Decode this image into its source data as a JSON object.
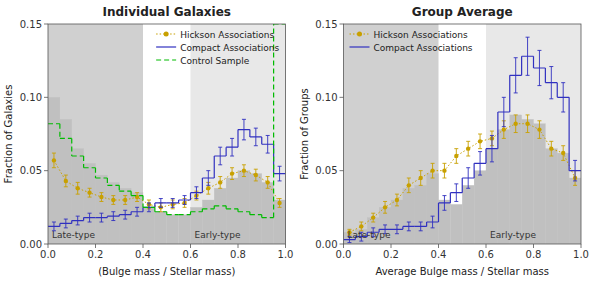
{
  "chart_data": [
    {
      "type": "histogram",
      "title": "Individual Galaxies",
      "x_label": "(Bulge mass / Stellar mass)",
      "y_label": "Fraction of Galaxies",
      "xlim": [
        0,
        1.0
      ],
      "ylim": [
        0,
        0.15
      ],
      "xticks": [
        {
          "value": 0,
          "label": "0.0"
        },
        0.2,
        0.4,
        0.6,
        0.8,
        {
          "value": 1.0,
          "label": "1.0"
        }
      ],
      "yticks": [
        {
          "value": 0,
          "label": "0.00"
        },
        0.05,
        {
          "value": 0.1,
          "label": "0.10"
        },
        0.15
      ],
      "grid": false,
      "legend": "upper right",
      "regions": [
        {
          "label": "Late-type",
          "from": 0,
          "to": 0.4,
          "color": "#d0d0d0"
        },
        {
          "label": "Early-type",
          "from": 0.6,
          "to": 1.0,
          "color": "#e8e8e8"
        }
      ],
      "bins": [
        0.0,
        0.05,
        0.1,
        0.15,
        0.2,
        0.25,
        0.3,
        0.35,
        0.4,
        0.45,
        0.5,
        0.55,
        0.6,
        0.65,
        0.7,
        0.75,
        0.8,
        0.85,
        0.9,
        0.95,
        1.0
      ],
      "x": [
        0.025,
        0.075,
        0.125,
        0.175,
        0.225,
        0.275,
        0.325,
        0.375,
        0.425,
        0.475,
        0.525,
        0.575,
        0.625,
        0.675,
        0.725,
        0.775,
        0.825,
        0.875,
        0.925,
        0.975
      ],
      "series": [
        {
          "type": "bar",
          "color": "#c0c0c0",
          "values": [
            0.1,
            0.085,
            0.065,
            0.055,
            0.047,
            0.042,
            0.038,
            0.035,
            0.025,
            0.022,
            0.02,
            0.02,
            0.025,
            0.03,
            0.038,
            0.045,
            0.05,
            0.048,
            0.042,
            0.03
          ]
        },
        {
          "name": "Hickson Associations",
          "type": "errorbar",
          "color": "#c8a000",
          "marker": "circle",
          "line_style": "dotted",
          "values": [
            0.057,
            0.043,
            0.038,
            0.035,
            0.032,
            0.03,
            0.03,
            0.032,
            0.027,
            0.025,
            0.027,
            0.028,
            0.033,
            0.038,
            0.042,
            0.048,
            0.05,
            0.047,
            0.042,
            0.028
          ],
          "errors": [
            0.005,
            0.004,
            0.004,
            0.003,
            0.003,
            0.003,
            0.003,
            0.003,
            0.003,
            0.003,
            0.003,
            0.003,
            0.003,
            0.004,
            0.004,
            0.004,
            0.004,
            0.004,
            0.004,
            0.003
          ]
        },
        {
          "name": "Compact Associations",
          "type": "step",
          "color": "#3030c0",
          "line_style": "solid",
          "values": [
            0.012,
            0.014,
            0.016,
            0.018,
            0.018,
            0.019,
            0.02,
            0.022,
            0.025,
            0.028,
            0.028,
            0.03,
            0.035,
            0.045,
            0.06,
            0.066,
            0.078,
            0.073,
            0.068,
            0.048
          ],
          "errors": [
            0.003,
            0.003,
            0.003,
            0.003,
            0.003,
            0.003,
            0.003,
            0.003,
            0.003,
            0.003,
            0.003,
            0.003,
            0.004,
            0.005,
            0.006,
            0.006,
            0.007,
            0.006,
            0.006,
            0.005
          ]
        },
        {
          "name": "Control Sample",
          "type": "step",
          "color": "#00bb00",
          "line_style": "dashed",
          "values": [
            0.082,
            0.072,
            0.06,
            0.052,
            0.045,
            0.04,
            0.036,
            0.033,
            0.025,
            0.022,
            0.02,
            0.02,
            0.022,
            0.024,
            0.026,
            0.024,
            0.022,
            0.02,
            0.018,
            0.15
          ]
        }
      ]
    },
    {
      "type": "histogram",
      "title": "Group Average",
      "x_label": "Average Bulge mass / Stellar mass",
      "y_label": "Fraction of Groups",
      "xlim": [
        0,
        1.0
      ],
      "ylim": [
        0,
        0.15
      ],
      "xticks": [
        {
          "value": 0,
          "label": "0.0"
        },
        0.2,
        0.4,
        0.6,
        0.8,
        {
          "value": 1.0,
          "label": "1.0"
        }
      ],
      "yticks": [
        {
          "value": 0,
          "label": "0.00"
        },
        0.05,
        {
          "value": 0.1,
          "label": "0.10"
        },
        0.15
      ],
      "grid": false,
      "legend": "upper left",
      "regions": [
        {
          "label": "Late-type",
          "from": 0,
          "to": 0.4,
          "color": "#d0d0d0"
        },
        {
          "label": "Early-type",
          "from": 0.6,
          "to": 1.0,
          "color": "#e8e8e8"
        }
      ],
      "bins": [
        0.0,
        0.05,
        0.1,
        0.15,
        0.2,
        0.25,
        0.3,
        0.35,
        0.4,
        0.45,
        0.5,
        0.55,
        0.6,
        0.65,
        0.7,
        0.75,
        0.8,
        0.85,
        0.9,
        0.95,
        1.0
      ],
      "x": [
        0.025,
        0.075,
        0.125,
        0.175,
        0.225,
        0.275,
        0.325,
        0.375,
        0.425,
        0.475,
        0.525,
        0.575,
        0.625,
        0.675,
        0.725,
        0.775,
        0.825,
        0.875,
        0.925,
        0.975
      ],
      "series": [
        {
          "type": "bar",
          "color": "#c0c0c0",
          "values": [
            0.008,
            0.01,
            0.018,
            0.025,
            0.03,
            0.038,
            0.04,
            0.048,
            0.03,
            0.027,
            0.04,
            0.05,
            0.065,
            0.078,
            0.088,
            0.085,
            0.082,
            0.065,
            0.062,
            0.045
          ]
        },
        {
          "name": "Hickson Associations",
          "type": "errorbar",
          "color": "#c8a000",
          "marker": "circle",
          "line_style": "dotted",
          "values": [
            0.008,
            0.012,
            0.018,
            0.025,
            0.03,
            0.04,
            0.045,
            0.05,
            0.05,
            0.06,
            0.065,
            0.07,
            0.072,
            0.078,
            0.082,
            0.082,
            0.078,
            0.065,
            0.062,
            0.045
          ],
          "errors": [
            0.002,
            0.003,
            0.003,
            0.004,
            0.004,
            0.005,
            0.005,
            0.005,
            0.005,
            0.005,
            0.005,
            0.005,
            0.005,
            0.006,
            0.006,
            0.006,
            0.006,
            0.005,
            0.005,
            0.005
          ]
        },
        {
          "name": "Compact Associations",
          "type": "step",
          "color": "#3030c0",
          "line_style": "solid",
          "values": [
            0.003,
            0.005,
            0.008,
            0.01,
            0.01,
            0.012,
            0.012,
            0.015,
            0.028,
            0.035,
            0.045,
            0.055,
            0.065,
            0.09,
            0.115,
            0.128,
            0.12,
            0.11,
            0.1,
            0.05
          ],
          "errors": [
            0.002,
            0.003,
            0.003,
            0.003,
            0.003,
            0.003,
            0.003,
            0.004,
            0.005,
            0.006,
            0.007,
            0.008,
            0.009,
            0.01,
            0.012,
            0.013,
            0.012,
            0.011,
            0.01,
            0.007
          ]
        }
      ]
    }
  ]
}
